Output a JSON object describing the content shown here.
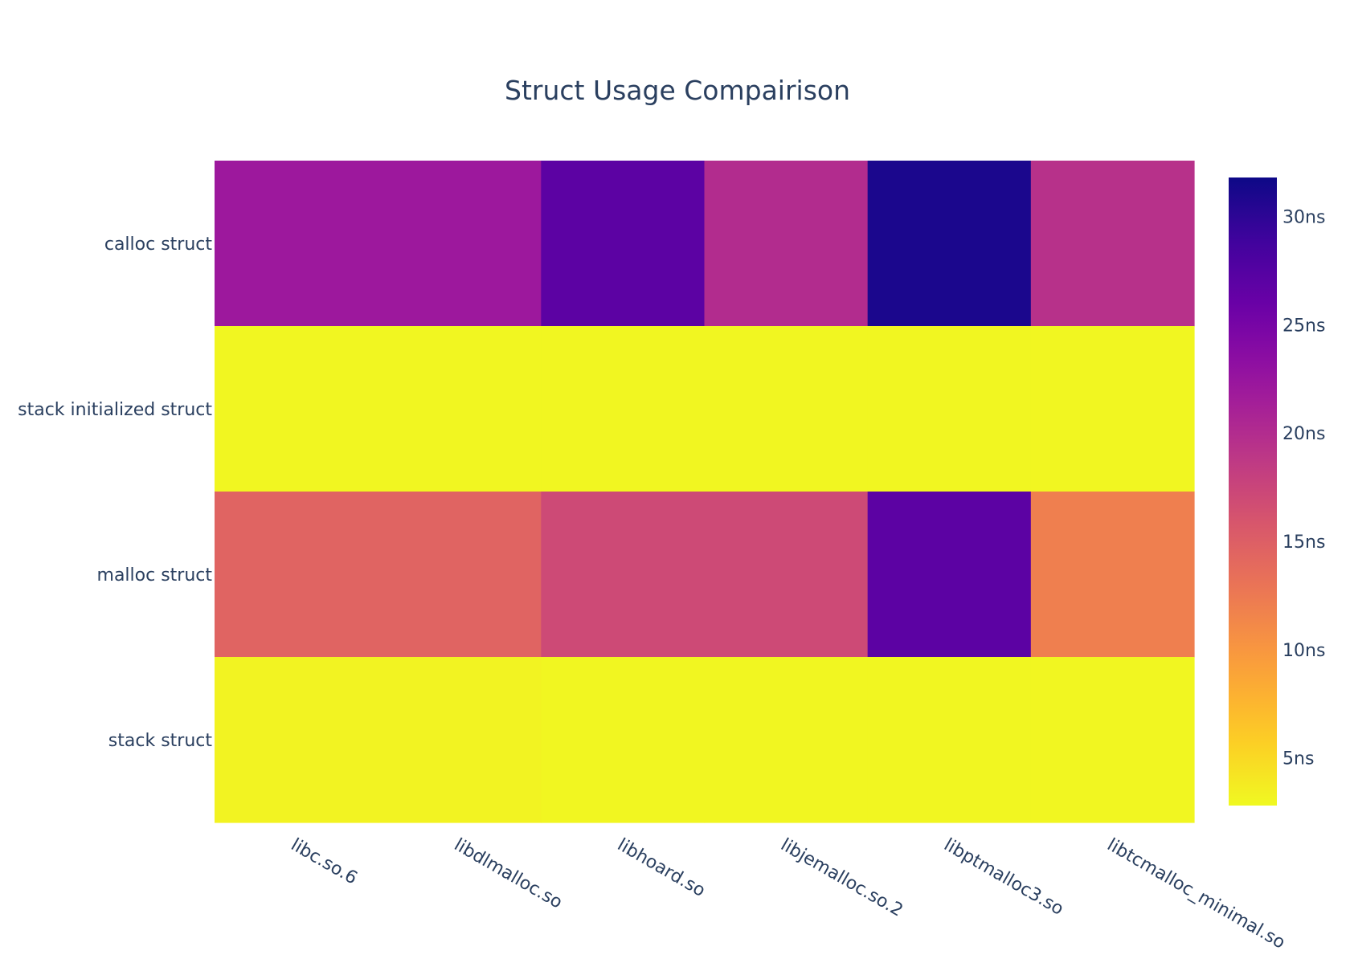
{
  "chart_data": {
    "type": "heatmap",
    "title": "Struct Usage Compairison",
    "xlabel": "",
    "ylabel": "",
    "x_categories": [
      "libc.so.6",
      "libdlmalloc.so",
      "libhoard.so",
      "libjemalloc.so.2",
      "libptmalloc3.so",
      "libtcmalloc_minimal.so"
    ],
    "y_categories": [
      "calloc struct",
      "stack initialized struct",
      "malloc struct",
      "stack struct"
    ],
    "z": [
      [
        22,
        22,
        27,
        20,
        31,
        19.5
      ],
      [
        3,
        3,
        3,
        3,
        3,
        3
      ],
      [
        14.5,
        14.5,
        17,
        17,
        27,
        12
      ],
      [
        3.2,
        3.2,
        3,
        3,
        3,
        3
      ]
    ],
    "colorscale": "plasma",
    "zlim": [
      2.8,
      31.8
    ],
    "colorbar": {
      "tick_values": [
        5,
        10,
        15,
        20,
        25,
        30
      ],
      "tick_labels": [
        "5ns",
        "10ns",
        "15ns",
        "20ns",
        "25ns",
        "30ns"
      ]
    },
    "legend": "colorbar-right",
    "grid": false
  }
}
